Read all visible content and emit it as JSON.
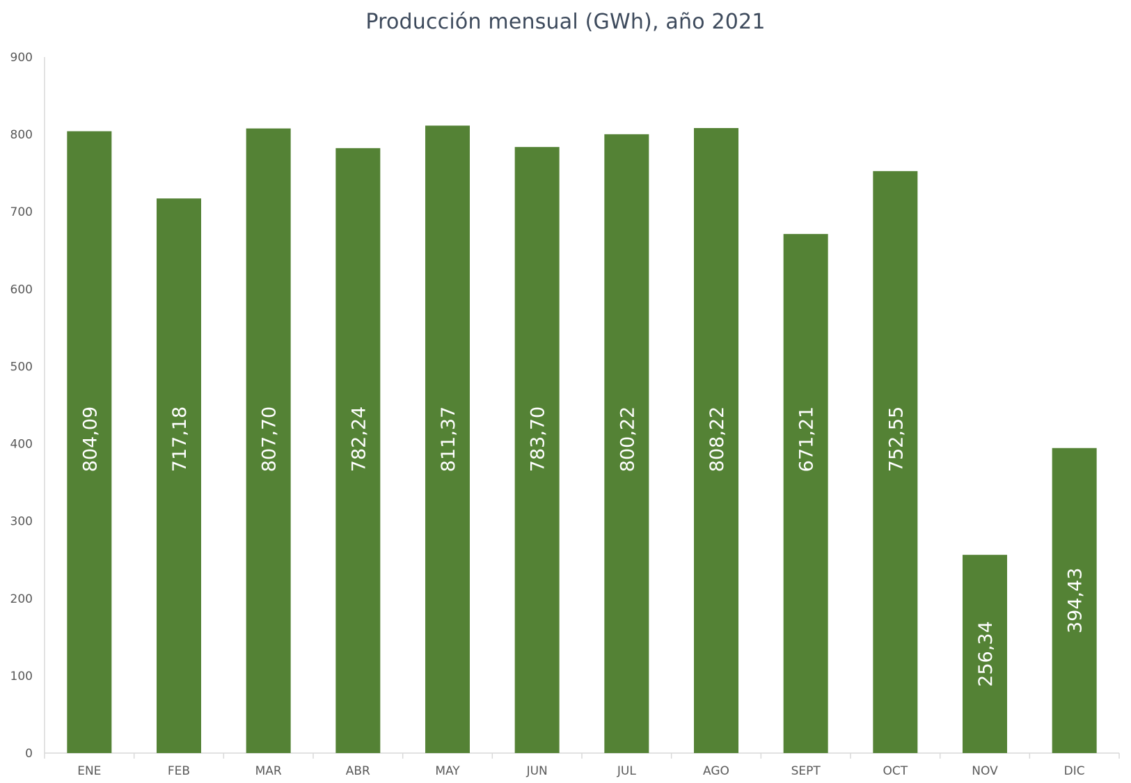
{
  "chart_data": {
    "type": "bar",
    "title": "Producción mensual (GWh), año 2021",
    "xlabel": "",
    "ylabel": "",
    "categories": [
      "ENE",
      "FEB",
      "MAR",
      "ABR",
      "MAY",
      "JUN",
      "JUL",
      "AGO",
      "SEPT",
      "OCT",
      "NOV",
      "DIC"
    ],
    "values": [
      804.09,
      717.18,
      807.7,
      782.24,
      811.37,
      783.7,
      800.22,
      808.22,
      671.21,
      752.55,
      256.34,
      394.43
    ],
    "data_labels": [
      "804,09",
      "717,18",
      "807,70",
      "782,24",
      "811,37",
      "783,70",
      "800,22",
      "808,22",
      "671,21",
      "752,55",
      "256,34",
      "394,43"
    ],
    "ylim": [
      0,
      900
    ],
    "yticks": [
      "0",
      "100",
      "200",
      "300",
      "400",
      "500",
      "600",
      "700",
      "800",
      "900"
    ],
    "grid": false,
    "legend": "none",
    "colors": {
      "bar": "#548235",
      "axis": "#d9d9d9",
      "label": "#ffffff",
      "tick": "#595959",
      "title": "#3d4a5c"
    }
  }
}
